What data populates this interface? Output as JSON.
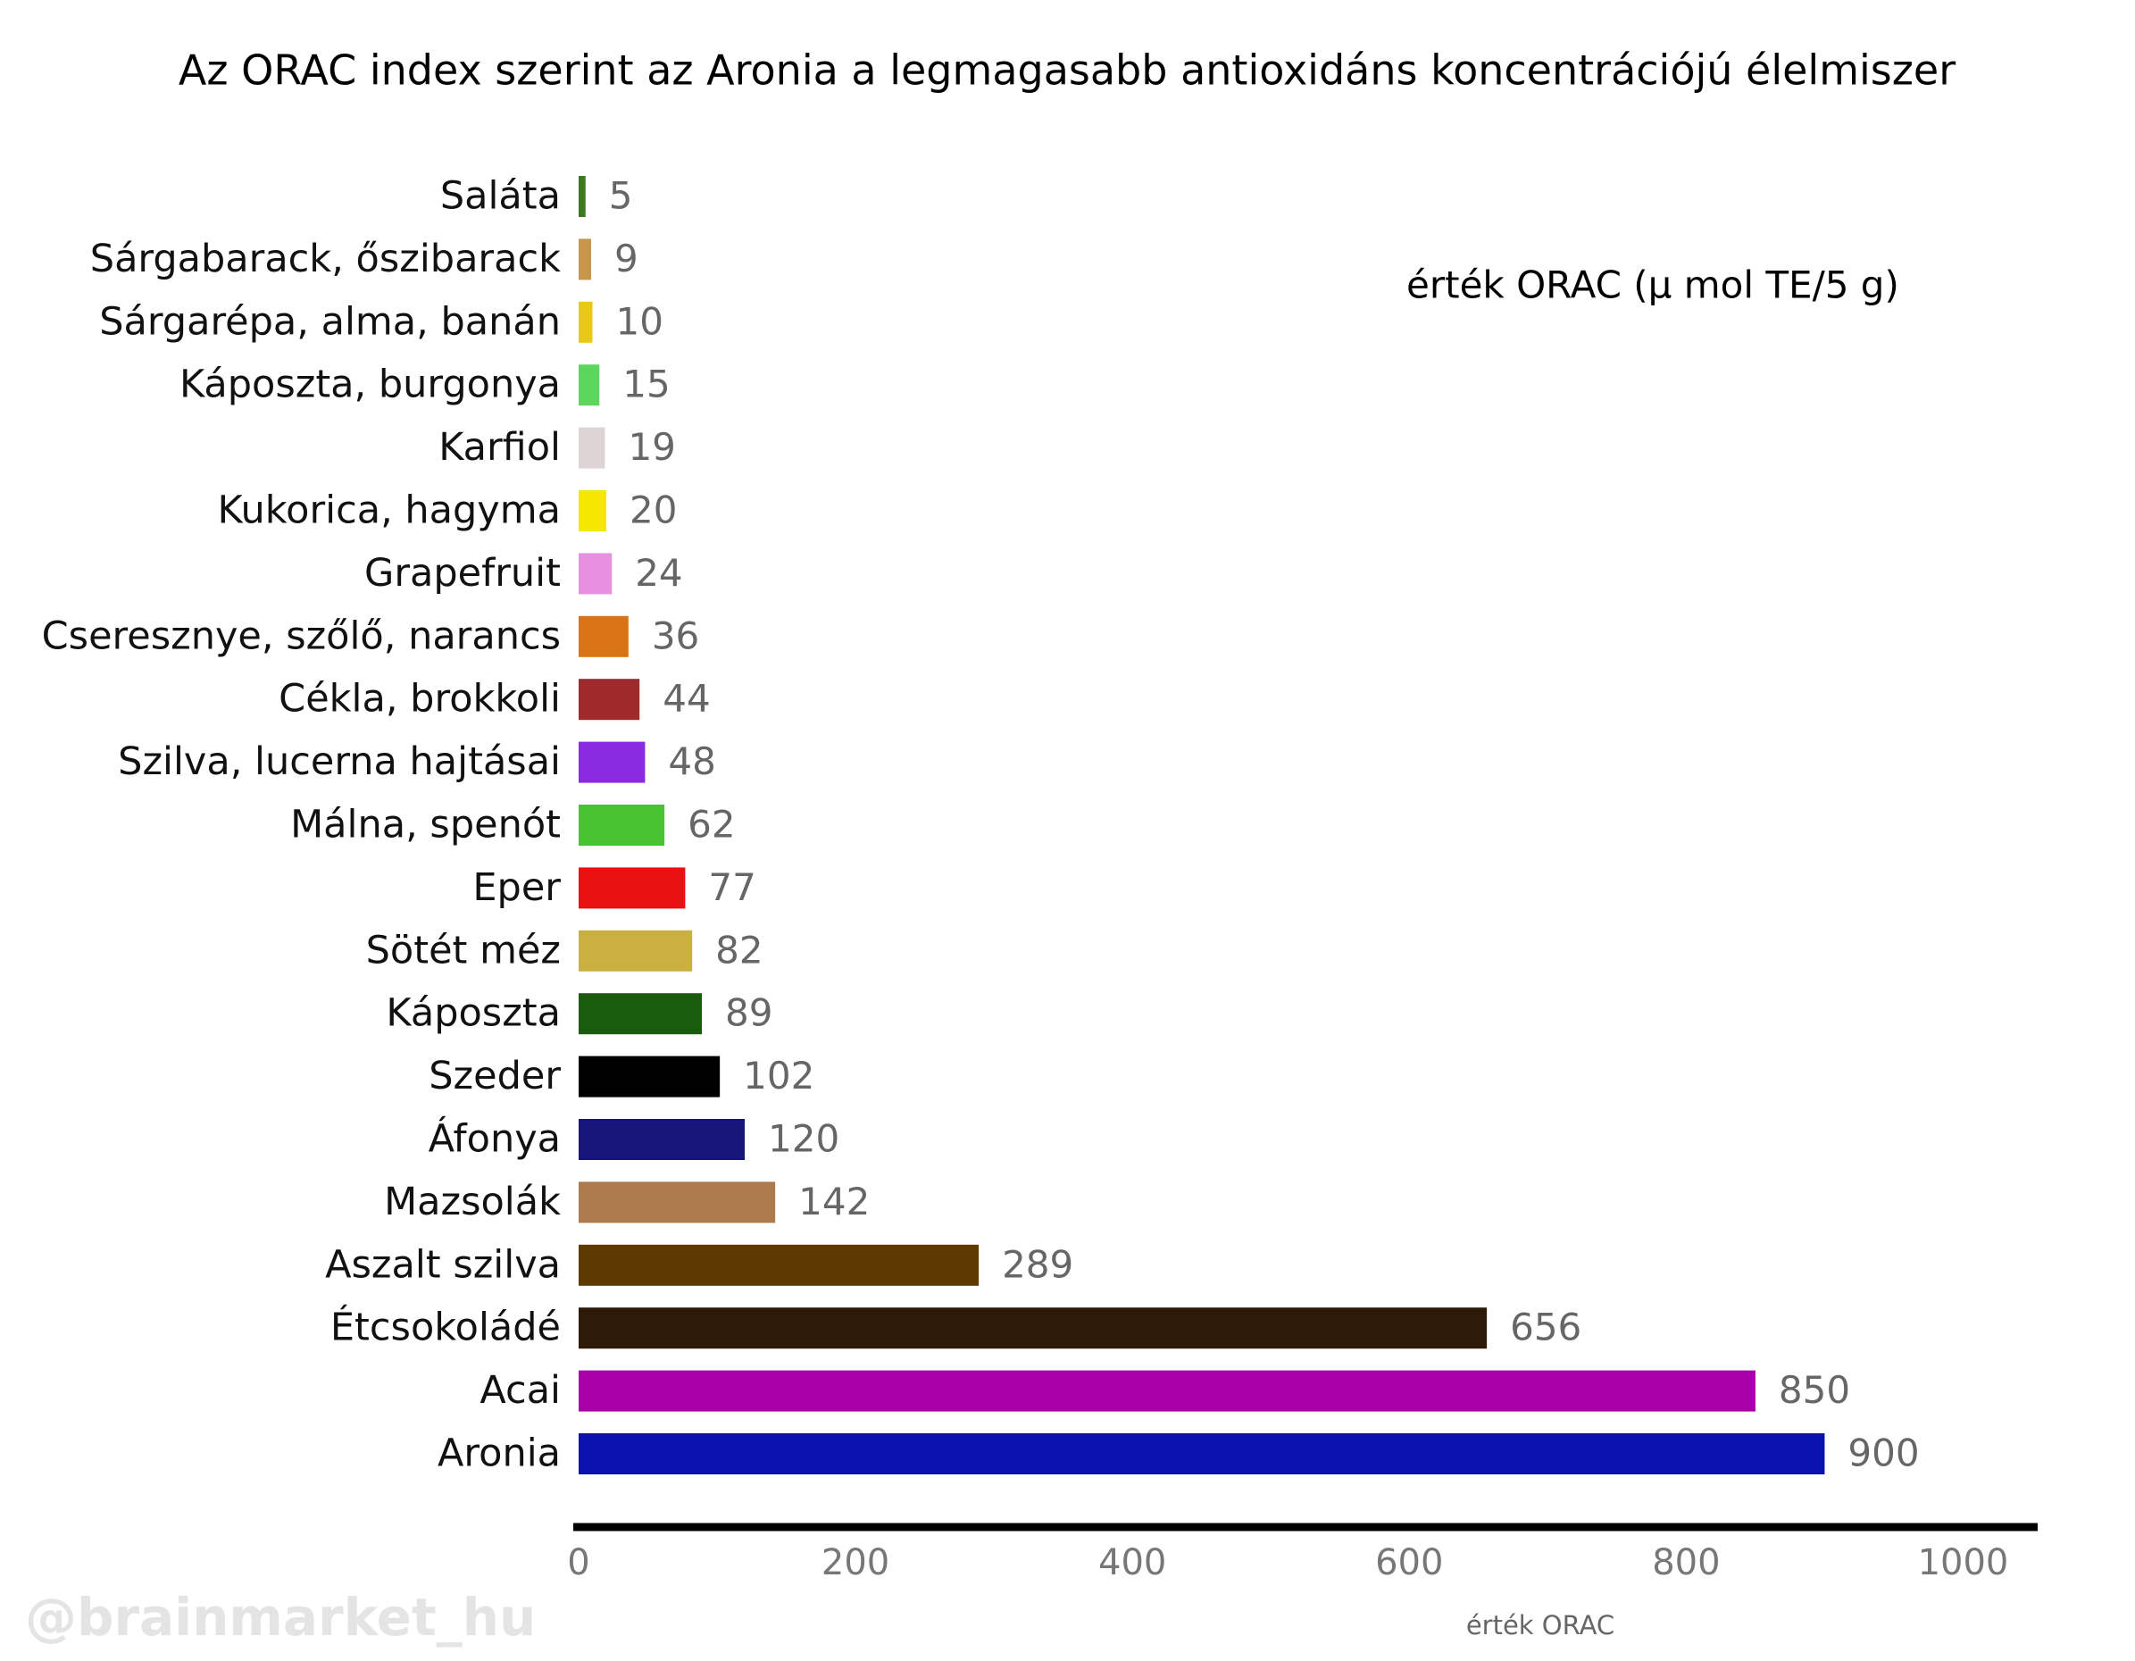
{
  "chart_data": {
    "type": "hbar",
    "title": "Az ORAC index szerint az Aronia a legmagasabb antioxidáns koncentrációjú élelmiszer",
    "legend_note": "érték ORAC (μ mol TE/5 g)",
    "x_label": "érték ORAC",
    "watermark": "@brainmarket_hu",
    "categories": [
      "Saláta",
      "Sárgabarack, őszibarack",
      "Sárgarépa, alma, banán",
      "Káposzta, burgonya",
      "Karfiol",
      "Kukorica, hagyma",
      "Grapefruit",
      "Cseresznye, szőlő, narancs",
      "Cékla, brokkoli",
      "Szilva, lucerna hajtásai",
      "Málna, spenót",
      "Eper",
      "Sötét méz",
      "Káposzta",
      "Szeder",
      "Áfonya",
      "Mazsolák",
      "Aszalt szilva",
      "Étcsokoládé",
      "Acai",
      "Aronia"
    ],
    "values": [
      5,
      9,
      10,
      15,
      19,
      20,
      24,
      36,
      44,
      48,
      62,
      77,
      82,
      89,
      102,
      120,
      142,
      289,
      656,
      850,
      900
    ],
    "colors": [
      "#3d7a1e",
      "#c8964a",
      "#e8c81a",
      "#5cd65c",
      "#ddd5d5",
      "#f5e800",
      "#e890e0",
      "#d97316",
      "#9e2a2b",
      "#8a2be2",
      "#47c42f",
      "#e81010",
      "#c9b040",
      "#1a5c0e",
      "#000000",
      "#15157a",
      "#ad7a4d",
      "#5e3a00",
      "#2e1a08",
      "#a600a6",
      "#0a12b0"
    ],
    "xlim": [
      0,
      1050
    ],
    "xticks": [
      0,
      200,
      400,
      600,
      800,
      1000
    ]
  }
}
